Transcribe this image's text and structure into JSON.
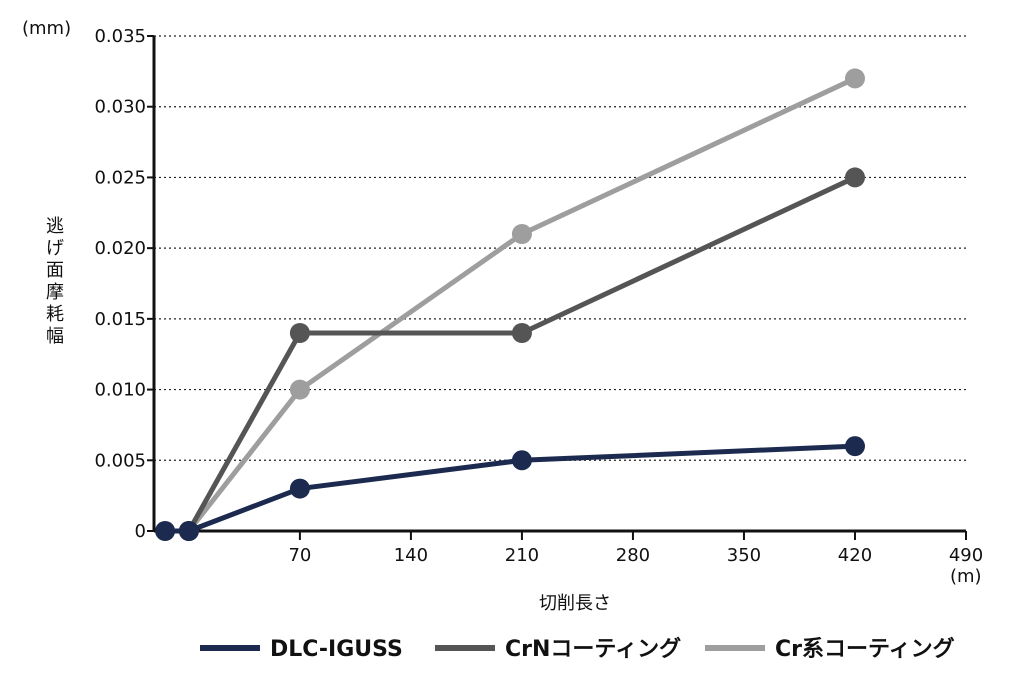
{
  "chart_data": {
    "type": "line",
    "title": "",
    "xlabel": "切削長さ",
    "ylabel": "逃げ面摩耗幅",
    "x_unit": "(m)",
    "y_unit": "(mm)",
    "xlim": [
      -22,
      490
    ],
    "ylim": [
      0,
      0.035
    ],
    "x_ticks": [
      70,
      140,
      210,
      280,
      350,
      420,
      490
    ],
    "x_tick_labels": [
      "70",
      "140",
      "210",
      "280",
      "350",
      "420",
      "490"
    ],
    "y_ticks": [
      0,
      0.005,
      0.01,
      0.015,
      0.02,
      0.025,
      0.03,
      0.035
    ],
    "y_tick_labels": [
      "0",
      "0.005",
      "0.010",
      "0.015",
      "0.020",
      "0.025",
      "0.030",
      "0.035"
    ],
    "grid": "horizontal-dotted",
    "legend_position": "bottom",
    "series": [
      {
        "name": "DLC-IGUSS",
        "color": "#1b2a4e",
        "x": [
          -15,
          0,
          70,
          210,
          420
        ],
        "y": [
          0,
          0,
          0.003,
          0.005,
          0.006
        ]
      },
      {
        "name": "CrNコーティング",
        "color": "#555555",
        "x": [
          0,
          70,
          210,
          420
        ],
        "y": [
          0,
          0.014,
          0.014,
          0.025
        ]
      },
      {
        "name": "Cr系コーティング",
        "color": "#9e9e9e",
        "x": [
          0,
          70,
          210,
          420
        ],
        "y": [
          0,
          0.01,
          0.021,
          0.032
        ]
      }
    ]
  }
}
